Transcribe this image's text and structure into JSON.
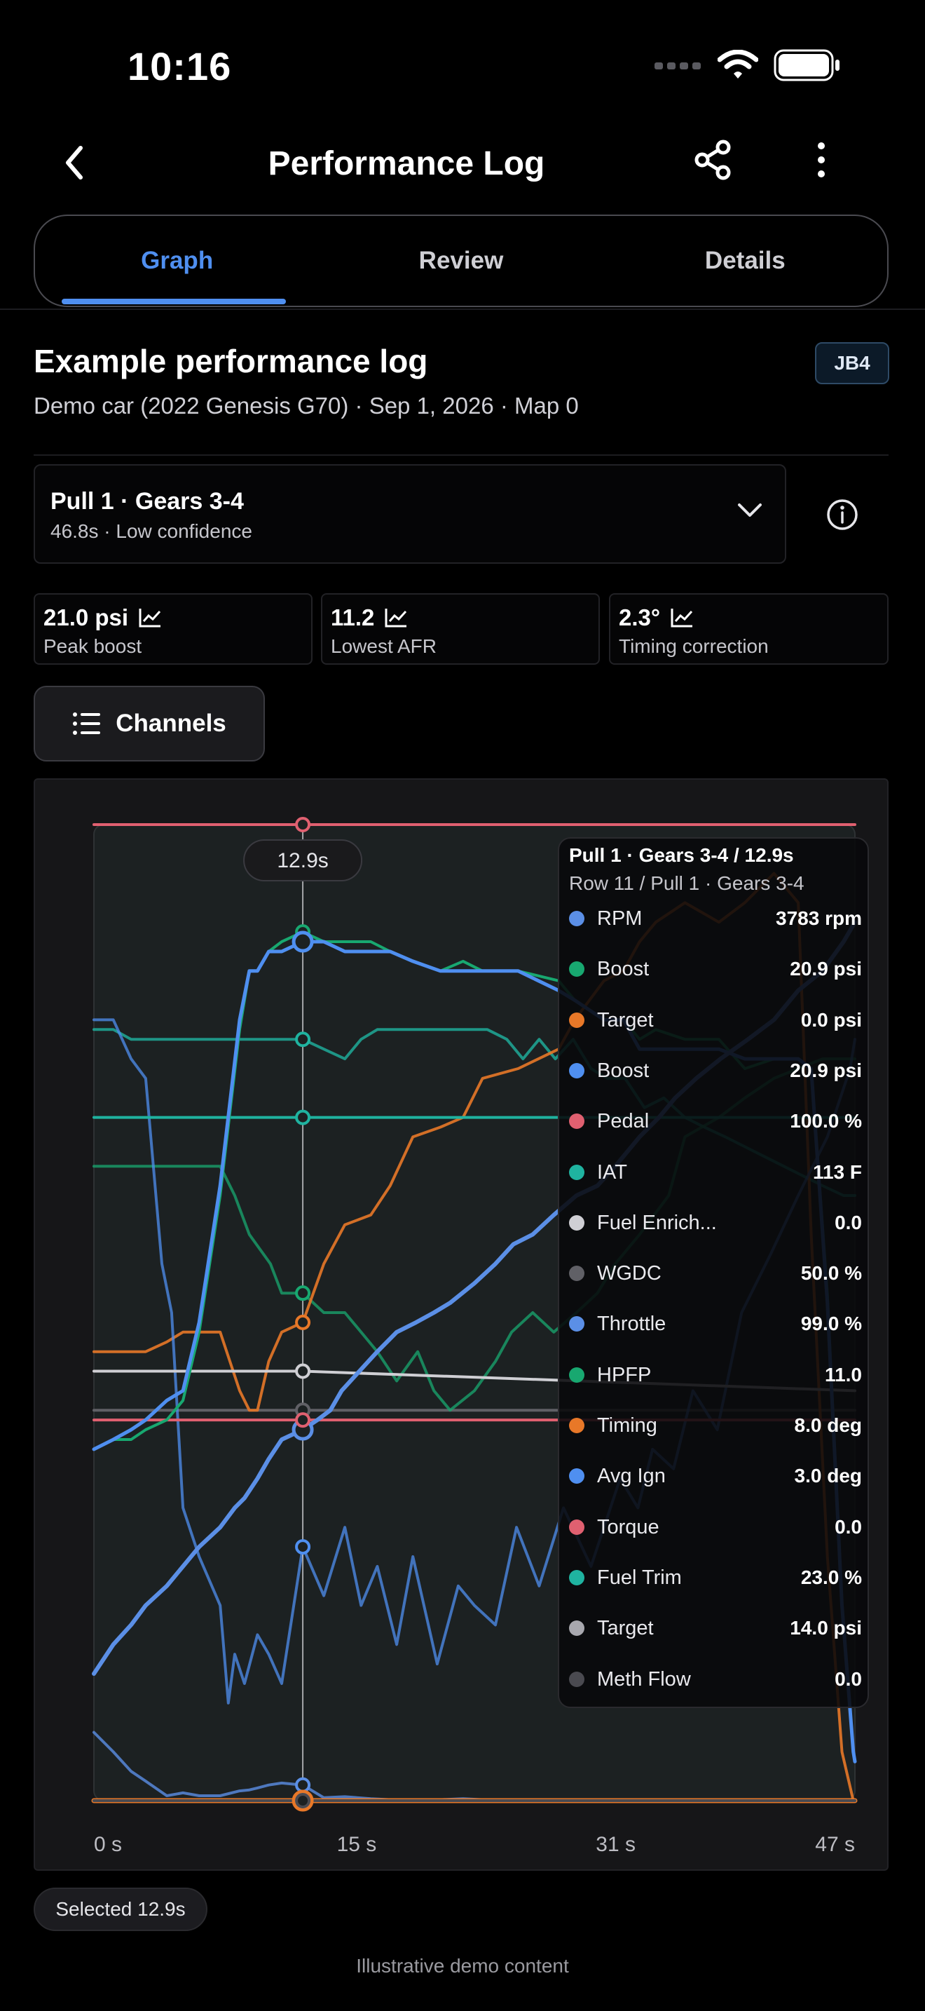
{
  "status_bar": {
    "time": "10:16"
  },
  "nav": {
    "title": "Performance Log",
    "icons": [
      "back-chevron-icon",
      "share-icon",
      "more-vertical-icon"
    ]
  },
  "tabs": [
    {
      "label": "Graph",
      "active": true
    },
    {
      "label": "Review",
      "active": false
    },
    {
      "label": "Details",
      "active": false
    }
  ],
  "log": {
    "title": "Example performance log",
    "subtitle": "Demo car (2022 Genesis G70) · Sep 1, 2026 · Map 0",
    "badge": "JB4"
  },
  "pull": {
    "title": "Pull 1 · Gears 3-4",
    "meta": "46.8s · Low confidence"
  },
  "stats": [
    {
      "value": "21.0 psi",
      "label": "Peak boost"
    },
    {
      "value": "11.2",
      "label": "Lowest AFR"
    },
    {
      "value": "2.3°",
      "label": "Timing correction"
    }
  ],
  "channels_button": {
    "label": "Channels"
  },
  "chart": {
    "cursor_label": "12.9s",
    "x_ticks": [
      "0 s",
      "15 s",
      "31 s",
      "47 s"
    ]
  },
  "chart_data": {
    "type": "line",
    "xlim": [
      0,
      47
    ],
    "cursor_x": 12.9,
    "series": [
      {
        "name": "RPM",
        "color": "#5b8fe6",
        "x": [
          0,
          1.2,
          2.3,
          3.2,
          4.5,
          5.5,
          6.5,
          7.8,
          9,
          9.6,
          10.1,
          10.8,
          11.6,
          12.9,
          14.2,
          15.5,
          17.1,
          18.3,
          19.7,
          21.4,
          22.8,
          24,
          26.2,
          28.7,
          29.7,
          31.5,
          32.7,
          33.7,
          34.7,
          36.5,
          38.6,
          40.2,
          42,
          43.5,
          44.3,
          45.3,
          46.2,
          46.9,
          47
        ],
        "y": [
          0.07,
          0.05,
          0.03,
          0.02,
          0.005,
          0.008,
          0.005,
          0.005,
          0.01,
          0.011,
          0.013,
          0.016,
          0.018,
          0.016,
          0.003,
          0.004,
          0.002,
          0.001,
          0.001,
          0.001,
          0.002,
          0.001,
          0.0,
          0.0,
          0.0,
          0.0,
          0.0,
          0.0,
          0.0,
          0.0,
          0.0,
          0.0,
          0.0,
          0.0,
          0.0,
          0.0,
          0.0,
          0.0,
          0.0
        ]
      },
      {
        "name": "Boost",
        "color": "#18a870",
        "x": [
          0,
          1.2,
          2.3,
          3.2,
          4.5,
          5.5,
          6.5,
          7.8,
          9,
          9.6,
          10.1,
          10.8,
          11.6,
          12.9,
          14.2,
          15.5,
          17.1,
          18.3,
          19.7,
          21.4,
          22.8,
          24,
          26.2,
          28.7,
          29.7,
          31.5,
          32.7,
          33.7,
          34.7,
          36.5,
          38.6,
          40.2,
          42,
          43.5,
          44.3,
          45.3,
          46.2,
          46.9,
          47
        ],
        "y": [
          0.36,
          0.37,
          0.37,
          0.38,
          0.39,
          0.41,
          0.48,
          0.62,
          0.79,
          0.85,
          0.85,
          0.87,
          0.88,
          0.89,
          0.88,
          0.88,
          0.88,
          0.87,
          0.86,
          0.85,
          0.86,
          0.85,
          0.85,
          0.84,
          0.82,
          0.8,
          0.8,
          0.78,
          0.79,
          0.78,
          0.78,
          0.75,
          0.76,
          0.76,
          0.75,
          0.52,
          0.2,
          0.05,
          0.04
        ]
      },
      {
        "name": "Target",
        "color": "#e87828",
        "x": [
          0,
          1.2,
          2.3,
          3.2,
          4.5,
          5.5,
          6.5,
          7.8,
          9,
          9.6,
          10.1,
          10.8,
          11.6,
          12.9,
          14.2,
          15.5,
          17.1,
          18.3,
          19.7,
          21.4,
          22.8,
          24,
          26.2,
          28.7,
          29.7,
          31.5,
          32.7,
          33.7,
          34.7,
          36.5,
          38.6,
          40.2,
          42,
          43.5,
          44.3,
          45.3,
          46.2,
          46.9,
          47
        ],
        "y": [
          0.46,
          0.46,
          0.46,
          0.46,
          0.47,
          0.48,
          0.48,
          0.48,
          0.42,
          0.4,
          0.4,
          0.45,
          0.48,
          0.49,
          0.55,
          0.59,
          0.6,
          0.63,
          0.68,
          0.69,
          0.7,
          0.74,
          0.75,
          0.77,
          0.8,
          0.84,
          0.85,
          0.88,
          0.9,
          0.92,
          0.9,
          0.92,
          0.95,
          0.92,
          0.58,
          0.25,
          0.05,
          0.0,
          0.0
        ]
      },
      {
        "name": "Boost",
        "color": "#4f8ff0",
        "x": [
          0,
          1.2,
          2.3,
          3.2,
          4.5,
          5.5,
          6.5,
          7.8,
          9,
          9.6,
          10.1,
          10.8,
          11.6,
          12.9,
          14.2,
          15.5,
          17.1,
          18.3,
          19.7,
          21.4,
          22.8,
          24,
          26.2,
          28.7,
          29.7,
          31.5,
          32.7,
          33.7,
          34.7,
          36.5,
          38.6,
          40.2,
          42,
          43.5,
          44.3,
          45.3,
          46.2,
          46.9,
          47
        ],
        "y": [
          0.36,
          0.37,
          0.38,
          0.39,
          0.41,
          0.42,
          0.49,
          0.63,
          0.8,
          0.85,
          0.85,
          0.87,
          0.87,
          0.88,
          0.88,
          0.87,
          0.87,
          0.87,
          0.86,
          0.85,
          0.85,
          0.85,
          0.85,
          0.83,
          0.82,
          0.8,
          0.8,
          0.77,
          0.77,
          0.77,
          0.77,
          0.76,
          0.76,
          0.76,
          0.75,
          0.51,
          0.2,
          0.05,
          0.04
        ]
      },
      {
        "name": "Pedal",
        "color": "#e06070",
        "x": [
          0,
          47
        ],
        "y": [
          1.0,
          1.0
        ]
      },
      {
        "name": "IAT",
        "color": "#1fb3a0",
        "x": [
          0,
          12.9,
          47
        ],
        "y": [
          0.7,
          0.7,
          0.7
        ]
      },
      {
        "name": "Fuel Enrich...",
        "color": "#cfcfd4",
        "x": [
          0,
          12.9,
          47
        ],
        "y": [
          0.44,
          0.44,
          0.42
        ]
      },
      {
        "name": "WGDC",
        "color": "#606066",
        "x": [
          0,
          47
        ],
        "y": [
          0.4,
          0.4
        ]
      },
      {
        "name": "Throttle",
        "color": "#5b8fe6",
        "x": [
          0,
          1.2,
          2.3,
          3.2,
          4.5,
          5.5,
          6.5,
          7.8,
          8.7,
          9.3,
          10.1,
          10.8,
          11.6,
          12.9,
          13.8,
          14.6,
          15.3,
          16.4,
          17.5,
          18.7,
          19.9,
          21,
          22,
          23.5,
          24.8,
          25.9,
          27.1,
          28.4,
          29.8,
          31.1,
          32.2,
          33.7,
          34.9,
          35.9,
          37.2,
          38.7,
          40.4,
          42,
          43.5,
          45,
          46.3,
          47
        ],
        "y": [
          0.13,
          0.16,
          0.18,
          0.2,
          0.22,
          0.24,
          0.26,
          0.28,
          0.3,
          0.31,
          0.33,
          0.35,
          0.37,
          0.38,
          0.39,
          0.4,
          0.42,
          0.44,
          0.46,
          0.48,
          0.49,
          0.5,
          0.51,
          0.53,
          0.55,
          0.57,
          0.58,
          0.6,
          0.62,
          0.63,
          0.65,
          0.68,
          0.7,
          0.72,
          0.74,
          0.76,
          0.78,
          0.8,
          0.83,
          0.85,
          0.88,
          0.9
        ]
      },
      {
        "name": "HPFP",
        "color": "#18a870",
        "x": [
          0,
          5.5,
          7.8,
          8.7,
          9.6,
          10.9,
          11.6,
          12.9,
          14.2,
          15.5,
          16.5,
          17.5,
          18.7,
          20,
          21,
          22,
          23.5,
          24.8,
          25.8,
          27.1,
          28.4,
          29.8,
          31.1,
          32.2,
          33.7,
          35.5,
          36.5,
          38.6,
          40.2,
          42,
          43.5,
          45,
          46.3,
          47
        ],
        "y": [
          0.65,
          0.65,
          0.65,
          0.62,
          0.58,
          0.55,
          0.52,
          0.52,
          0.5,
          0.5,
          0.48,
          0.46,
          0.43,
          0.46,
          0.42,
          0.4,
          0.42,
          0.45,
          0.48,
          0.5,
          0.48,
          0.5,
          0.52,
          0.55,
          0.58,
          0.62,
          0.68,
          0.7,
          0.72,
          0.74,
          0.75,
          0.76,
          0.76,
          0.76
        ]
      },
      {
        "name": "Timing",
        "color": "#e87828",
        "x": [
          0,
          47
        ],
        "y": [
          0.0,
          0.0
        ]
      },
      {
        "name": "Avg Ign",
        "color": "#4f8ff0",
        "x": [
          0,
          1.2,
          2.3,
          3.2,
          4.2,
          4.8,
          5.5,
          6.5,
          7.8,
          8.3,
          8.7,
          9.3,
          10.1,
          10.8,
          11.6,
          12.9,
          14.2,
          15.5,
          16.5,
          17.5,
          18.7,
          19.7,
          21.2,
          22.5,
          23.5,
          24.8,
          26.1,
          27.5,
          29,
          30.7,
          32.5,
          33.6,
          34.5,
          35.8,
          37,
          38.5,
          40,
          41.8,
          43.5,
          45.3,
          46.7,
          47
        ],
        "y": [
          0.8,
          0.8,
          0.76,
          0.74,
          0.55,
          0.5,
          0.3,
          0.25,
          0.2,
          0.1,
          0.15,
          0.12,
          0.17,
          0.15,
          0.12,
          0.26,
          0.21,
          0.28,
          0.2,
          0.24,
          0.16,
          0.25,
          0.14,
          0.22,
          0.2,
          0.18,
          0.28,
          0.22,
          0.3,
          0.24,
          0.33,
          0.3,
          0.36,
          0.34,
          0.42,
          0.38,
          0.5,
          0.56,
          0.62,
          0.68,
          0.75,
          0.78
        ]
      },
      {
        "name": "Torque",
        "color": "#e06070",
        "x": [
          0,
          47
        ],
        "y": [
          0.39,
          0.39
        ]
      },
      {
        "name": "Fuel Trim",
        "color": "#1fb3a0",
        "x": [
          0,
          1.2,
          2.3,
          3.2,
          4.5,
          5.5,
          6.5,
          7.8,
          9,
          10.1,
          11.6,
          12.9,
          14.2,
          15.5,
          16.5,
          17.5,
          18.7,
          20,
          21.5,
          23,
          24.3,
          25.5,
          26.5,
          27.5,
          28.5,
          29.6,
          30.7,
          31.7,
          32.8,
          34,
          35.2,
          36.5,
          37.7,
          39,
          40.2,
          41.4,
          42.6,
          43.8,
          45,
          46.3,
          47
        ],
        "y": [
          0.79,
          0.79,
          0.78,
          0.78,
          0.78,
          0.78,
          0.78,
          0.78,
          0.78,
          0.78,
          0.78,
          0.78,
          0.77,
          0.76,
          0.78,
          0.79,
          0.79,
          0.79,
          0.79,
          0.79,
          0.79,
          0.78,
          0.76,
          0.78,
          0.76,
          0.78,
          0.75,
          0.74,
          0.74,
          0.71,
          0.72,
          0.7,
          0.69,
          0.68,
          0.67,
          0.66,
          0.65,
          0.64,
          0.63,
          0.62,
          0.62
        ]
      },
      {
        "name": "Target",
        "color": "#a8a8ae",
        "x": [
          0,
          47
        ],
        "y": [
          0.0,
          0.0
        ]
      },
      {
        "name": "Meth Flow",
        "color": "#4a4a50",
        "x": [
          0,
          47
        ],
        "y": [
          0.0,
          0.0
        ]
      }
    ]
  },
  "tooltip": {
    "title": "Pull 1 · Gears 3-4 / 12.9s",
    "subtitle": "Row 11 / Pull 1 · Gears 3-4",
    "rows": [
      {
        "name": "RPM",
        "value": "3783 rpm",
        "color": "#5b8fe6"
      },
      {
        "name": "Boost",
        "value": "20.9 psi",
        "color": "#18a870"
      },
      {
        "name": "Target",
        "value": "0.0 psi",
        "color": "#e87828"
      },
      {
        "name": "Boost",
        "value": "20.9 psi",
        "color": "#4f8ff0"
      },
      {
        "name": "Pedal",
        "value": "100.0 %",
        "color": "#e06070"
      },
      {
        "name": "IAT",
        "value": "113 F",
        "color": "#1fb3a0"
      },
      {
        "name": "Fuel Enrich...",
        "value": "0.0",
        "color": "#cfcfd4"
      },
      {
        "name": "WGDC",
        "value": "50.0 %",
        "color": "#606066"
      },
      {
        "name": "Throttle",
        "value": "99.0 %",
        "color": "#5b8fe6"
      },
      {
        "name": "HPFP",
        "value": "11.0",
        "color": "#18a870"
      },
      {
        "name": "Timing",
        "value": "8.0 deg",
        "color": "#e87828"
      },
      {
        "name": "Avg Ign",
        "value": "3.0 deg",
        "color": "#4f8ff0"
      },
      {
        "name": "Torque",
        "value": "0.0",
        "color": "#e06070"
      },
      {
        "name": "Fuel Trim",
        "value": "23.0 %",
        "color": "#1fb3a0"
      },
      {
        "name": "Target",
        "value": "14.0 psi",
        "color": "#a8a8ae"
      },
      {
        "name": "Meth Flow",
        "value": "0.0",
        "color": "#4a4a50"
      }
    ]
  },
  "selection": {
    "label": "Selected 12.9s"
  },
  "footer": {
    "text": "Illustrative demo content"
  }
}
